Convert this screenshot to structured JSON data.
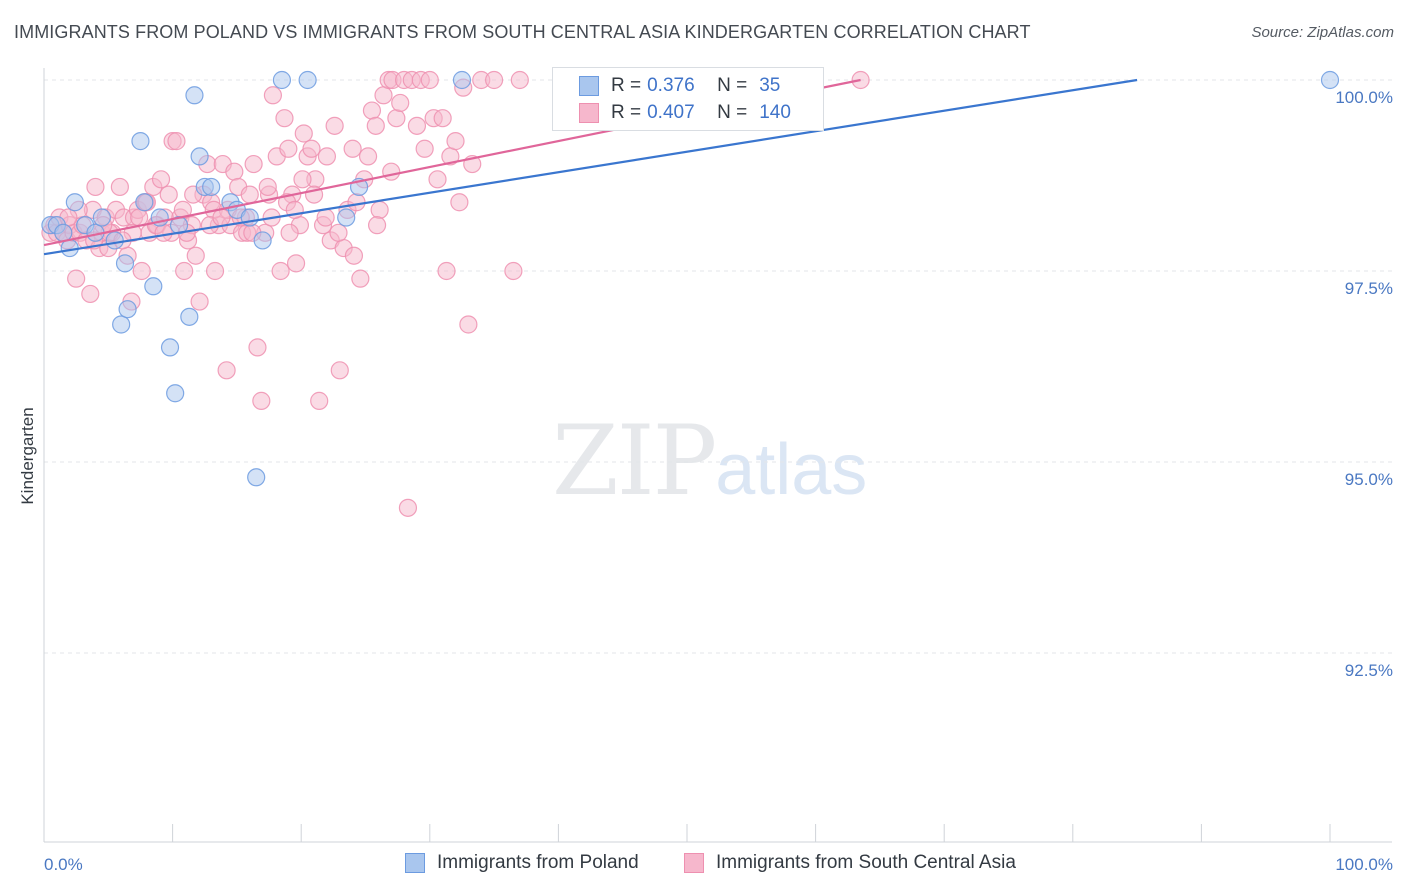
{
  "title": "IMMIGRANTS FROM POLAND VS IMMIGRANTS FROM SOUTH CENTRAL ASIA KINDERGARTEN CORRELATION CHART",
  "source": "Source: ZipAtlas.com",
  "watermark": {
    "zip": "ZIP",
    "atlas": "atlas"
  },
  "legend": {
    "rows": [
      {
        "r_label": "R =",
        "r_value": "0.376",
        "n_label": "N =",
        "n_value": "35"
      },
      {
        "r_label": "R =",
        "r_value": "0.407",
        "n_label": "N =",
        "n_value": "140"
      }
    ]
  },
  "bottom_legend": [
    "Immigrants from Poland",
    "Immigrants from South Central Asia"
  ],
  "colors": {
    "poland_fill": "#a9c6ee",
    "poland_stroke": "#6c9be0",
    "poland_line": "#3a76cf",
    "asia_fill": "#f6b7cc",
    "asia_stroke": "#ee90b0",
    "asia_line": "#e0669a",
    "grid": "#e3e6ea",
    "tick_text": "#4a78c2"
  },
  "chart_data": {
    "type": "scatter",
    "title": "IMMIGRANTS FROM POLAND VS IMMIGRANTS FROM SOUTH CENTRAL ASIA KINDERGARTEN CORRELATION CHART",
    "xlabel": "",
    "ylabel": "Kindergarten",
    "xlim": [
      0,
      100
    ],
    "ylim": [
      90.0,
      100.3
    ],
    "x_tick_labels": [
      "0.0%",
      "100.0%"
    ],
    "y_ticks": [
      92.5,
      95.0,
      97.5,
      100.0
    ],
    "y_tick_labels": [
      "92.5%",
      "95.0%",
      "97.5%",
      "100.0%"
    ],
    "grid": true,
    "series": [
      {
        "name": "Immigrants from Poland",
        "R": 0.376,
        "N": 35,
        "trend": {
          "x": [
            0,
            85
          ],
          "y": [
            97.72,
            100.0
          ]
        },
        "points": [
          [
            0.5,
            98.1
          ],
          [
            1.0,
            98.1
          ],
          [
            1.5,
            98.0
          ],
          [
            2.0,
            97.8
          ],
          [
            2.4,
            98.4
          ],
          [
            3.2,
            98.1
          ],
          [
            4.0,
            98.0
          ],
          [
            4.5,
            98.2
          ],
          [
            5.5,
            97.9
          ],
          [
            6.0,
            96.8
          ],
          [
            6.3,
            97.6
          ],
          [
            6.5,
            97.0
          ],
          [
            7.5,
            99.2
          ],
          [
            7.8,
            98.4
          ],
          [
            8.5,
            97.3
          ],
          [
            9.0,
            98.2
          ],
          [
            9.8,
            96.5
          ],
          [
            10.2,
            95.9
          ],
          [
            10.5,
            98.1
          ],
          [
            11.3,
            96.9
          ],
          [
            11.7,
            99.8
          ],
          [
            12.1,
            99.0
          ],
          [
            12.5,
            98.6
          ],
          [
            13.0,
            98.6
          ],
          [
            14.5,
            98.4
          ],
          [
            15.0,
            98.3
          ],
          [
            16.0,
            98.2
          ],
          [
            16.5,
            94.8
          ],
          [
            18.5,
            100.0
          ],
          [
            17.0,
            97.9
          ],
          [
            20.5,
            100.0
          ],
          [
            23.5,
            98.2
          ],
          [
            24.5,
            98.6
          ],
          [
            32.5,
            100.0
          ],
          [
            100.0,
            100.0
          ]
        ]
      },
      {
        "name": "Immigrants from South Central Asia",
        "R": 0.407,
        "N": 140,
        "trend": {
          "x": [
            0,
            63.5
          ],
          "y": [
            97.84,
            100.0
          ]
        },
        "points": [
          [
            0.5,
            98.0
          ],
          [
            0.8,
            98.1
          ],
          [
            1.0,
            98.0
          ],
          [
            1.2,
            98.2
          ],
          [
            1.5,
            98.0
          ],
          [
            1.8,
            97.9
          ],
          [
            2.0,
            98.1
          ],
          [
            2.3,
            98.0
          ],
          [
            2.5,
            97.4
          ],
          [
            2.8,
            98.0
          ],
          [
            3.0,
            98.1
          ],
          [
            3.3,
            97.9
          ],
          [
            3.6,
            97.2
          ],
          [
            3.8,
            98.3
          ],
          [
            4.0,
            98.6
          ],
          [
            4.3,
            97.8
          ],
          [
            4.5,
            98.0
          ],
          [
            4.8,
            98.2
          ],
          [
            5.0,
            97.8
          ],
          [
            5.3,
            98.0
          ],
          [
            5.6,
            98.3
          ],
          [
            5.9,
            98.6
          ],
          [
            6.2,
            98.2
          ],
          [
            6.5,
            97.7
          ],
          [
            6.8,
            97.1
          ],
          [
            7.0,
            98.2
          ],
          [
            7.3,
            98.3
          ],
          [
            7.6,
            97.5
          ],
          [
            7.9,
            98.4
          ],
          [
            8.2,
            98.0
          ],
          [
            8.5,
            98.6
          ],
          [
            8.8,
            98.1
          ],
          [
            9.1,
            98.7
          ],
          [
            9.4,
            98.2
          ],
          [
            9.7,
            98.5
          ],
          [
            10.0,
            99.2
          ],
          [
            10.3,
            99.2
          ],
          [
            10.6,
            98.2
          ],
          [
            10.9,
            97.5
          ],
          [
            11.2,
            97.9
          ],
          [
            11.5,
            98.1
          ],
          [
            11.8,
            97.7
          ],
          [
            12.1,
            97.1
          ],
          [
            12.4,
            98.5
          ],
          [
            12.7,
            98.9
          ],
          [
            13.0,
            98.4
          ],
          [
            13.3,
            97.5
          ],
          [
            13.6,
            98.1
          ],
          [
            13.9,
            98.9
          ],
          [
            14.2,
            96.2
          ],
          [
            14.5,
            98.1
          ],
          [
            14.8,
            98.8
          ],
          [
            15.1,
            98.6
          ],
          [
            15.4,
            98.0
          ],
          [
            15.7,
            98.2
          ],
          [
            16.0,
            98.5
          ],
          [
            16.3,
            98.9
          ],
          [
            16.6,
            96.5
          ],
          [
            16.9,
            95.8
          ],
          [
            17.2,
            98.0
          ],
          [
            17.5,
            98.5
          ],
          [
            17.8,
            99.8
          ],
          [
            18.1,
            99.0
          ],
          [
            18.4,
            97.5
          ],
          [
            18.7,
            99.5
          ],
          [
            19.0,
            99.1
          ],
          [
            19.3,
            98.5
          ],
          [
            19.6,
            97.6
          ],
          [
            19.9,
            98.1
          ],
          [
            20.2,
            99.3
          ],
          [
            20.5,
            99.0
          ],
          [
            20.8,
            99.1
          ],
          [
            21.1,
            98.7
          ],
          [
            21.4,
            95.8
          ],
          [
            21.7,
            98.1
          ],
          [
            22.0,
            99.0
          ],
          [
            22.3,
            97.9
          ],
          [
            22.6,
            99.4
          ],
          [
            23.0,
            96.2
          ],
          [
            23.3,
            97.8
          ],
          [
            23.6,
            98.3
          ],
          [
            24.0,
            99.1
          ],
          [
            24.3,
            98.4
          ],
          [
            24.6,
            97.4
          ],
          [
            24.9,
            98.7
          ],
          [
            25.2,
            99.0
          ],
          [
            25.5,
            99.6
          ],
          [
            25.8,
            99.4
          ],
          [
            26.1,
            98.3
          ],
          [
            26.4,
            99.8
          ],
          [
            26.8,
            100.0
          ],
          [
            27.1,
            100.0
          ],
          [
            27.4,
            99.5
          ],
          [
            27.7,
            99.7
          ],
          [
            28.0,
            100.0
          ],
          [
            28.3,
            94.4
          ],
          [
            28.6,
            100.0
          ],
          [
            29.0,
            99.4
          ],
          [
            29.3,
            100.0
          ],
          [
            29.6,
            99.1
          ],
          [
            30.0,
            100.0
          ],
          [
            30.3,
            99.5
          ],
          [
            30.6,
            98.7
          ],
          [
            31.0,
            99.5
          ],
          [
            31.3,
            97.5
          ],
          [
            31.6,
            99.0
          ],
          [
            32.0,
            99.2
          ],
          [
            32.3,
            98.4
          ],
          [
            32.6,
            99.9
          ],
          [
            33.0,
            96.8
          ],
          [
            33.3,
            98.9
          ],
          [
            34.0,
            100.0
          ],
          [
            35.0,
            100.0
          ],
          [
            37.0,
            100.0
          ],
          [
            5.1,
            98.0
          ],
          [
            9.9,
            98.0
          ],
          [
            13.2,
            98.3
          ],
          [
            15.8,
            98.0
          ],
          [
            19.1,
            98.0
          ],
          [
            21.0,
            98.5
          ],
          [
            2.7,
            98.3
          ],
          [
            6.9,
            98.0
          ],
          [
            8.7,
            98.1
          ],
          [
            11.6,
            98.5
          ],
          [
            14.3,
            98.3
          ],
          [
            17.7,
            98.2
          ],
          [
            20.1,
            98.7
          ],
          [
            22.9,
            98.0
          ],
          [
            25.9,
            98.1
          ],
          [
            1.9,
            98.2
          ],
          [
            3.9,
            97.9
          ],
          [
            6.1,
            97.9
          ],
          [
            8.0,
            98.4
          ],
          [
            10.8,
            98.3
          ],
          [
            12.9,
            98.1
          ],
          [
            16.2,
            98.0
          ],
          [
            18.9,
            98.4
          ],
          [
            21.9,
            98.2
          ],
          [
            24.1,
            97.7
          ],
          [
            27.0,
            98.8
          ],
          [
            4.6,
            98.1
          ],
          [
            7.4,
            98.2
          ],
          [
            9.3,
            98.0
          ],
          [
            11.1,
            98.0
          ],
          [
            13.8,
            98.2
          ],
          [
            15.3,
            98.2
          ],
          [
            17.4,
            98.6
          ],
          [
            19.5,
            98.3
          ],
          [
            63.5,
            100.0
          ],
          [
            36.5,
            97.5
          ]
        ]
      }
    ]
  }
}
